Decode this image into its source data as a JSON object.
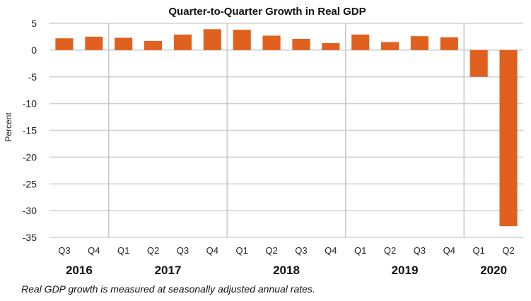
{
  "chart_data": {
    "type": "bar",
    "title": "Quarter-to-Quarter Growth in Real GDP",
    "ylabel": "Percent",
    "xlabel": "",
    "ylim": [
      -35,
      5
    ],
    "yticks": [
      5,
      0,
      -5,
      -10,
      -15,
      -20,
      -25,
      -30,
      -35
    ],
    "grid": true,
    "categories": [
      "Q3",
      "Q4",
      "Q1",
      "Q2",
      "Q3",
      "Q4",
      "Q1",
      "Q2",
      "Q3",
      "Q4",
      "Q1",
      "Q2",
      "Q3",
      "Q4",
      "Q1",
      "Q2"
    ],
    "years": [
      {
        "label": "2016",
        "quarters": 2
      },
      {
        "label": "2017",
        "quarters": 4
      },
      {
        "label": "2018",
        "quarters": 4
      },
      {
        "label": "2019",
        "quarters": 4
      },
      {
        "label": "2020",
        "quarters": 2
      }
    ],
    "values": [
      2.2,
      2.5,
      2.3,
      1.7,
      2.9,
      3.9,
      3.8,
      2.7,
      2.1,
      1.3,
      2.9,
      1.5,
      2.6,
      2.4,
      -5.0,
      -32.9
    ],
    "bar_color": "#e0611f",
    "note": "Real GDP growth is measured at seasonally adjusted annual rates."
  }
}
